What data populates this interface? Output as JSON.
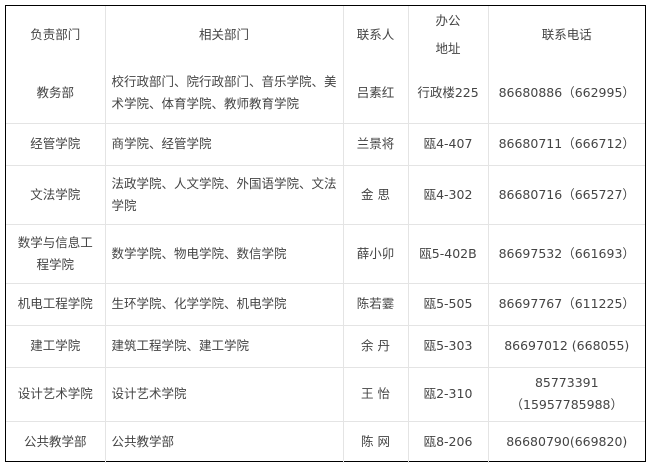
{
  "headers": [
    "负责部门",
    "相关部门",
    "联系人",
    "办公\n地址",
    "联系电话"
  ],
  "header_office_lines": [
    "办公",
    "地址"
  ],
  "rows": [
    {
      "dept": "教务部",
      "related": "校行政部门、院行政部门、音乐学院、美术学院、体育学院、教师教育学院",
      "contact": "吕素红",
      "office": "行政楼225",
      "phone": "86680886（662995）"
    },
    {
      "dept": "经管学院",
      "related": "商学院、经管学院",
      "contact": "兰景将",
      "office": "瓯4-407",
      "phone": "86680711（666712）"
    },
    {
      "dept": "文法学院",
      "related": "法政学院、人文学院、外国语学院、文法学院",
      "contact": "金  思",
      "office": "瓯4-302",
      "phone": "86680716（665727）"
    },
    {
      "dept": "数学与信息工程学院",
      "related": "数学学院、物电学院、数信学院",
      "contact": "薛小卯",
      "office": "瓯5-402B",
      "phone": "86697532（661693）"
    },
    {
      "dept": "机电工程学院",
      "related": "生环学院、化学学院、机电学院",
      "contact": "陈若霎",
      "office": "瓯5-505",
      "phone": "86697767（611225）"
    },
    {
      "dept": "建工学院",
      "related": "建筑工程学院、建工学院",
      "contact": "余  丹",
      "office": "瓯5-303",
      "phone": "86697012 (668055)"
    },
    {
      "dept": "设计艺术学院",
      "related": "设计艺术学院",
      "contact": "王  怡",
      "office": "瓯2-310",
      "phone": "85773391（15957785988）"
    },
    {
      "dept": "公共教学部",
      "related": "公共教学部",
      "contact": "陈  网",
      "office": "瓯8-206",
      "phone": "86680790(669820)"
    }
  ]
}
